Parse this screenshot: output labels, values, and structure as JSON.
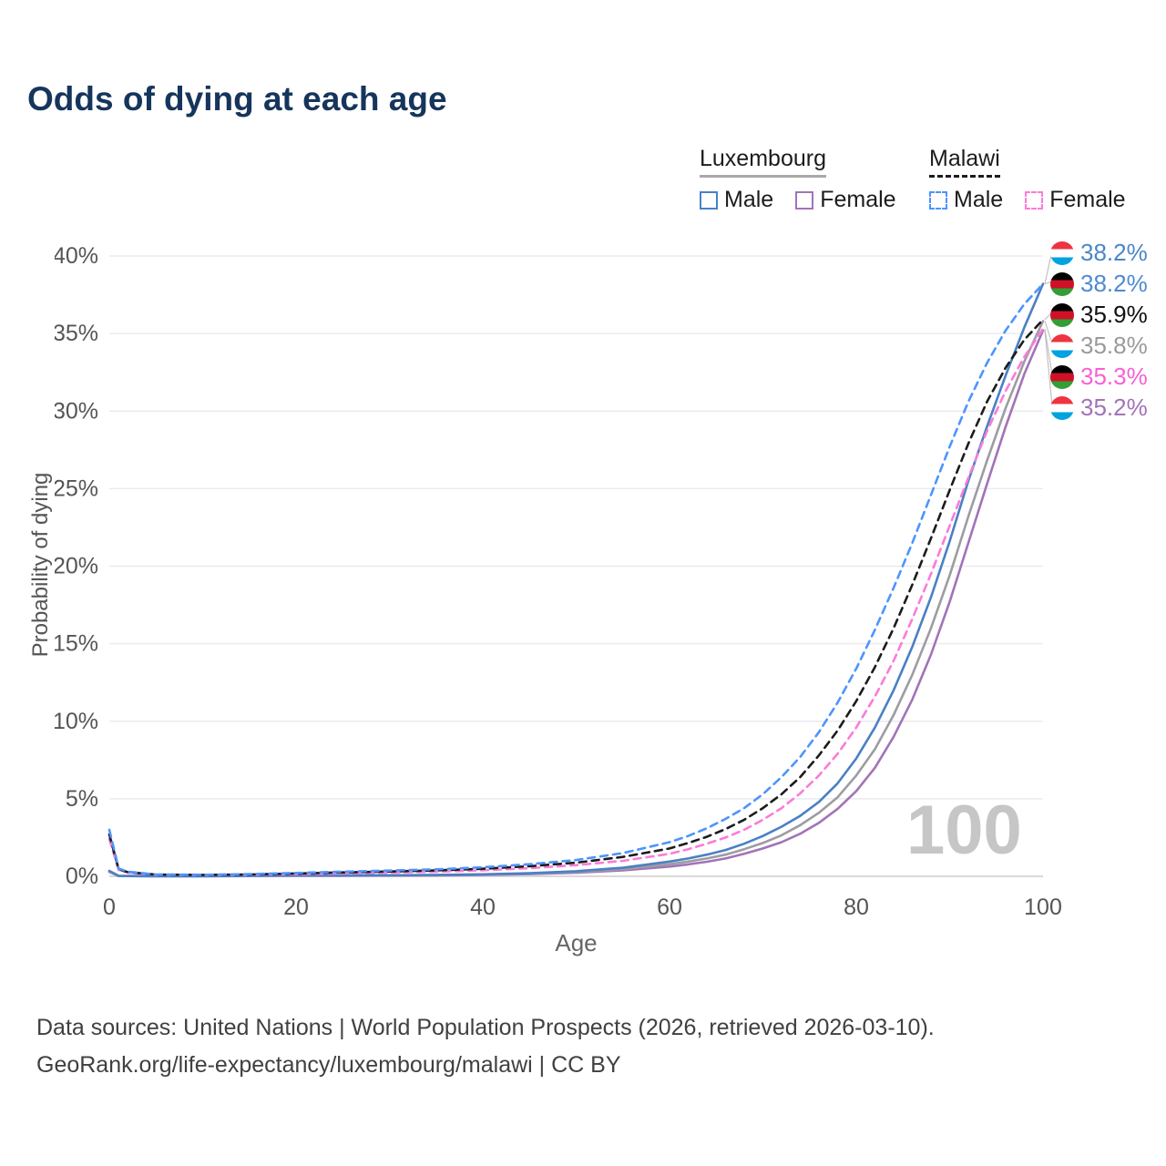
{
  "title": "Odds of dying at each age",
  "legend": {
    "groups": [
      {
        "label": "Luxembourg",
        "line_style": "solid",
        "underline_color": "#a9a9a9",
        "items": [
          {
            "label": "Male",
            "color": "#4a80c4",
            "dashed": false
          },
          {
            "label": "Female",
            "color": "#a273b8",
            "dashed": false
          }
        ]
      },
      {
        "label": "Malawi",
        "line_style": "dashed",
        "underline_color": "#1c1c1c",
        "items": [
          {
            "label": "Male",
            "color": "#4d94ff",
            "dashed": true
          },
          {
            "label": "Female",
            "color": "#fb7bd9",
            "dashed": true
          }
        ]
      }
    ]
  },
  "watermark": "100",
  "footer": {
    "line1": "Data sources: United Nations | World Population Prospects (2026, retrieved 2026-03-10).",
    "line2": "GeoRank.org/life-expectancy/luxembourg/malawi | CC BY"
  },
  "flags": {
    "luxembourg": [
      "#ef3340",
      "#ffffff",
      "#00a2e1"
    ],
    "malawi": [
      "#000000",
      "#ce1126",
      "#339e35"
    ]
  },
  "chart_data": {
    "type": "line",
    "title": "Odds of dying at each age",
    "xlabel": "Age",
    "ylabel": "Probability of dying",
    "xlim": [
      0,
      100
    ],
    "ylim": [
      0,
      40
    ],
    "x_ticks": [
      0,
      20,
      40,
      60,
      80,
      100
    ],
    "y_ticks": [
      0,
      5,
      10,
      15,
      20,
      25,
      30,
      35,
      40
    ],
    "y_tick_suffix": "%",
    "grid": true,
    "legend_position": "top-right",
    "x": [
      0,
      1,
      2,
      5,
      10,
      15,
      20,
      25,
      30,
      35,
      40,
      45,
      50,
      55,
      60,
      62,
      64,
      66,
      68,
      70,
      72,
      74,
      76,
      78,
      80,
      82,
      84,
      86,
      88,
      90,
      92,
      94,
      96,
      98,
      100
    ],
    "series": [
      {
        "name": "Luxembourg Female",
        "country": "Luxembourg",
        "sex": "Female",
        "color": "#a273b8",
        "dashed": false,
        "end_value": 35.2,
        "values": [
          0.28,
          0.02,
          0.015,
          0.008,
          0.008,
          0.02,
          0.03,
          0.035,
          0.045,
          0.06,
          0.09,
          0.14,
          0.23,
          0.38,
          0.63,
          0.77,
          0.94,
          1.15,
          1.45,
          1.8,
          2.2,
          2.75,
          3.45,
          4.35,
          5.5,
          7.0,
          9.0,
          11.4,
          14.3,
          17.7,
          21.5,
          25.3,
          29.0,
          32.4,
          35.2
        ]
      },
      {
        "name": "Luxembourg Both sexes",
        "country": "Luxembourg",
        "sex": "Both",
        "color": "#9c9ca2",
        "dashed": false,
        "end_value": 35.8,
        "values": [
          0.3,
          0.025,
          0.018,
          0.01,
          0.01,
          0.025,
          0.045,
          0.05,
          0.06,
          0.08,
          0.11,
          0.17,
          0.28,
          0.46,
          0.78,
          0.95,
          1.15,
          1.4,
          1.75,
          2.15,
          2.65,
          3.3,
          4.1,
          5.1,
          6.5,
          8.2,
          10.4,
          13.0,
          16.0,
          19.4,
          23.2,
          26.8,
          30.2,
          33.2,
          35.8
        ]
      },
      {
        "name": "Luxembourg Male",
        "country": "Luxembourg",
        "sex": "Male",
        "color": "#4a80c4",
        "dashed": false,
        "end_value": 38.2,
        "values": [
          0.35,
          0.03,
          0.02,
          0.01,
          0.01,
          0.03,
          0.06,
          0.06,
          0.07,
          0.09,
          0.13,
          0.2,
          0.33,
          0.55,
          0.95,
          1.15,
          1.4,
          1.7,
          2.1,
          2.6,
          3.2,
          3.9,
          4.8,
          6.0,
          7.6,
          9.6,
          12.0,
          14.8,
          18.0,
          21.6,
          25.5,
          29.0,
          32.3,
          35.4,
          38.2
        ]
      },
      {
        "name": "Malawi Female",
        "country": "Malawi",
        "sex": "Female",
        "color": "#fb7bd9",
        "dashed": true,
        "end_value": 35.3,
        "values": [
          2.4,
          0.4,
          0.24,
          0.1,
          0.08,
          0.1,
          0.14,
          0.19,
          0.24,
          0.3,
          0.39,
          0.52,
          0.72,
          1.0,
          1.45,
          1.75,
          2.1,
          2.5,
          3.0,
          3.65,
          4.4,
          5.35,
          6.5,
          7.9,
          9.6,
          11.6,
          13.9,
          16.6,
          19.5,
          22.6,
          25.7,
          28.7,
          31.3,
          33.5,
          35.3
        ]
      },
      {
        "name": "Malawi Both sexes",
        "country": "Malawi",
        "sex": "Both",
        "color": "#1c1c1c",
        "dashed": true,
        "end_value": 35.9,
        "values": [
          2.7,
          0.45,
          0.27,
          0.11,
          0.09,
          0.12,
          0.18,
          0.25,
          0.31,
          0.38,
          0.49,
          0.65,
          0.88,
          1.25,
          1.8,
          2.15,
          2.55,
          3.05,
          3.65,
          4.4,
          5.3,
          6.4,
          7.8,
          9.4,
          11.3,
          13.5,
          16.0,
          18.8,
          21.8,
          24.9,
          27.9,
          30.6,
          32.8,
          34.6,
          35.9
        ]
      },
      {
        "name": "Malawi Male",
        "country": "Malawi",
        "sex": "Male",
        "color": "#4d94ff",
        "dashed": true,
        "end_value": 38.2,
        "values": [
          3.0,
          0.5,
          0.3,
          0.12,
          0.1,
          0.14,
          0.22,
          0.3,
          0.37,
          0.45,
          0.58,
          0.78,
          1.05,
          1.5,
          2.2,
          2.6,
          3.1,
          3.7,
          4.4,
          5.3,
          6.4,
          7.7,
          9.3,
          11.2,
          13.4,
          15.9,
          18.6,
          21.5,
          24.6,
          27.7,
          30.6,
          33.1,
          35.2,
          36.9,
          38.2
        ]
      }
    ],
    "end_labels": [
      {
        "text": "38.2%",
        "value": 38.2,
        "flag": "luxembourg",
        "color": "#4a86c8",
        "series": "Luxembourg Male"
      },
      {
        "text": "38.2%",
        "value": 38.2,
        "flag": "malawi",
        "color": "#4d8ad0",
        "series": "Malawi Male"
      },
      {
        "text": "35.9%",
        "value": 35.9,
        "flag": "malawi",
        "color": "#111111",
        "series": "Malawi Both sexes"
      },
      {
        "text": "35.8%",
        "value": 35.8,
        "flag": "luxembourg",
        "color": "#9a9a9a",
        "series": "Luxembourg Both sexes"
      },
      {
        "text": "35.3%",
        "value": 35.3,
        "flag": "malawi",
        "color": "#f860d6",
        "series": "Malawi Female"
      },
      {
        "text": "35.2%",
        "value": 35.2,
        "flag": "luxembourg",
        "color": "#a273b8",
        "series": "Luxembourg Female"
      }
    ]
  }
}
